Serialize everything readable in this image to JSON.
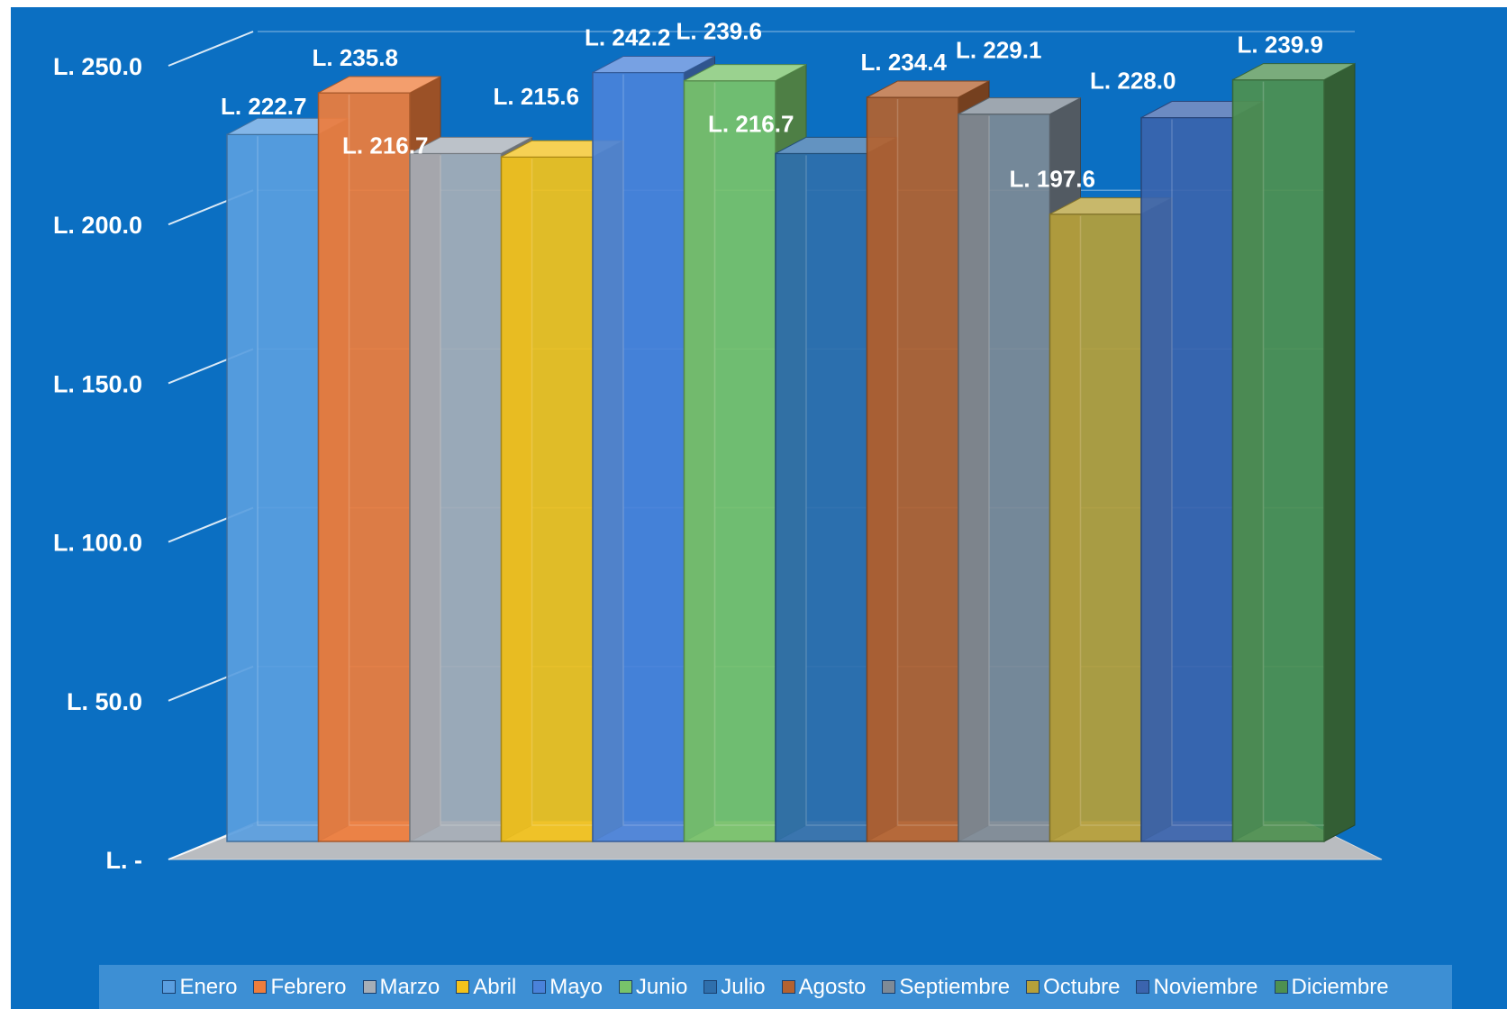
{
  "chart_data": {
    "type": "bar",
    "categories": [
      "Enero",
      "Febrero",
      "Marzo",
      "Abril",
      "Mayo",
      "Junio",
      "Julio",
      "Agosto",
      "Septiembre",
      "Octubre",
      "Noviembre",
      "Diciembre"
    ],
    "values": [
      222.7,
      235.8,
      216.7,
      215.6,
      242.2,
      239.6,
      216.7,
      234.4,
      229.1,
      197.6,
      228.0,
      239.9
    ],
    "data_labels": [
      "L. 222.7",
      "L. 235.8",
      "L. 216.7",
      "L. 215.6",
      "L. 242.2",
      "L. 239.6",
      "L. 216.7",
      "L. 234.4",
      "L. 229.1",
      "L. 197.6",
      "L. 228.0",
      "L. 239.9"
    ],
    "title": "",
    "xlabel": "",
    "ylabel": "",
    "ylim": [
      0,
      250
    ],
    "y_ticks": [
      0,
      50,
      100,
      150,
      200,
      250
    ],
    "y_tick_labels": [
      "L. -",
      "L. 50.0",
      "L. 100.0",
      "L. 150.0",
      "L. 200.0",
      "L. 250.0"
    ],
    "colors": [
      "#5a9ee0",
      "#ef7d3c",
      "#a6aeb7",
      "#f3c21b",
      "#4a82da",
      "#78c36a",
      "#2f6fac",
      "#b4622f",
      "#7e8a96",
      "#b6a03a",
      "#3b64ae",
      "#4e9050"
    ],
    "grid": true,
    "legend_position": "bottom",
    "background": "#0b6fc2",
    "style": "3d-columns"
  }
}
